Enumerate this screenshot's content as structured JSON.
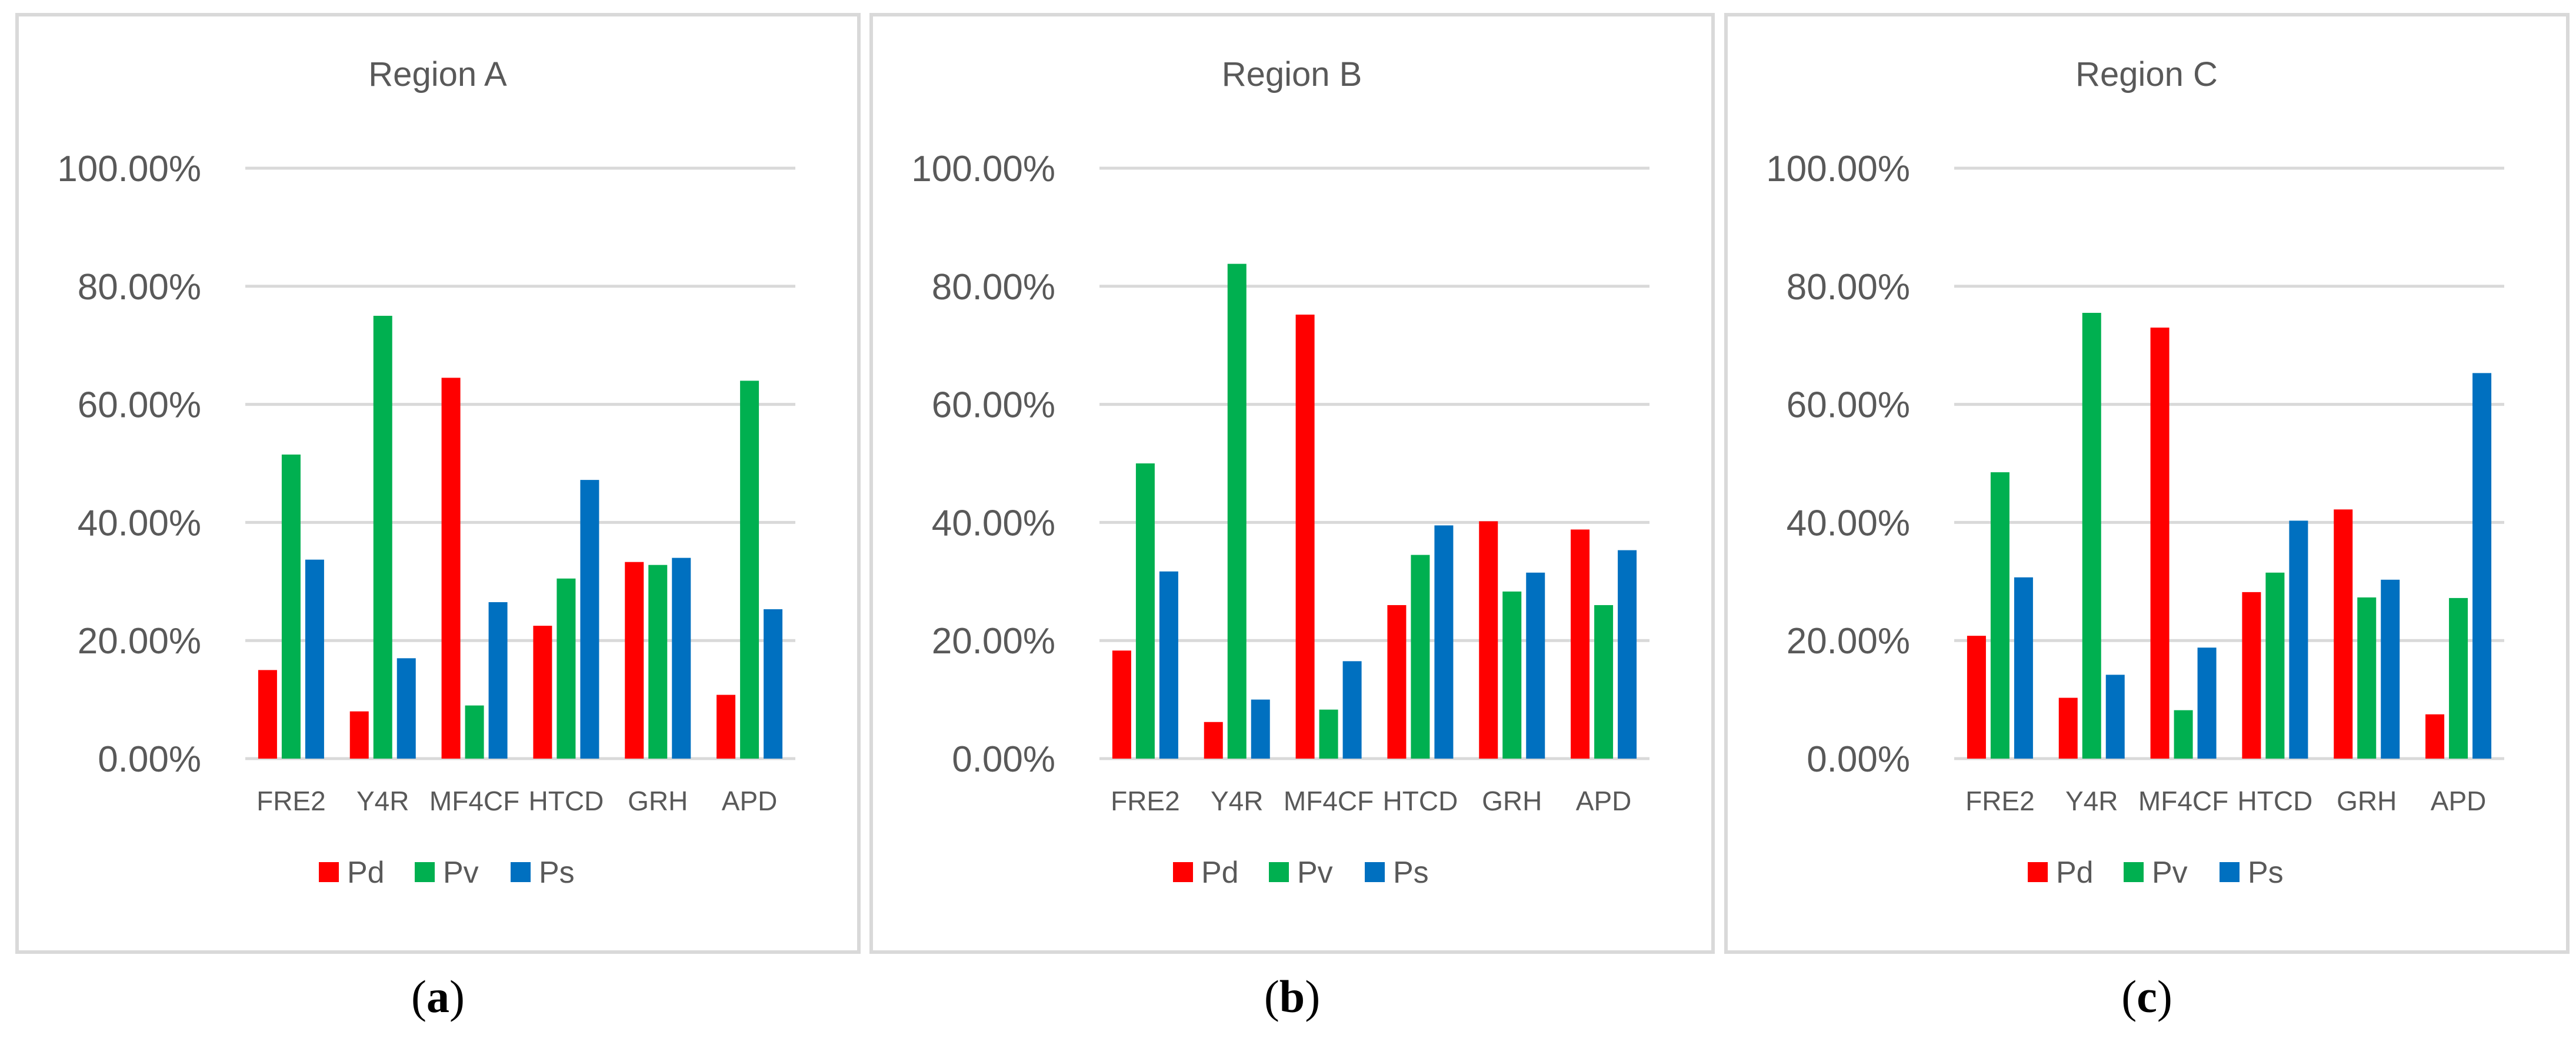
{
  "chart_data": [
    {
      "type": "bar",
      "title": "Region A",
      "caption": "a",
      "categories": [
        "FRE2",
        "Y4R",
        "MF4CF",
        "HTCD",
        "GRH",
        "APD"
      ],
      "ylim": [
        0,
        100
      ],
      "yticks": [
        "0.00%",
        "20.00%",
        "40.00%",
        "60.00%",
        "80.00%",
        "100.00%"
      ],
      "series": [
        {
          "name": "Pd",
          "color": "#ff0000",
          "values": [
            15.0,
            8.0,
            64.5,
            22.5,
            33.3,
            10.8
          ]
        },
        {
          "name": "Pv",
          "color": "#00b050",
          "values": [
            51.5,
            75.0,
            9.0,
            30.5,
            32.8,
            64.0
          ]
        },
        {
          "name": "Ps",
          "color": "#0070c0",
          "values": [
            33.7,
            17.0,
            26.5,
            47.2,
            34.0,
            25.3
          ]
        }
      ],
      "legend": "bottom",
      "grid": true
    },
    {
      "type": "bar",
      "title": "Region B",
      "caption": "b",
      "categories": [
        "FRE2",
        "Y4R",
        "MF4CF",
        "HTCD",
        "GRH",
        "APD"
      ],
      "ylim": [
        0,
        100
      ],
      "yticks": [
        "0.00%",
        "20.00%",
        "40.00%",
        "60.00%",
        "80.00%",
        "100.00%"
      ],
      "series": [
        {
          "name": "Pd",
          "color": "#ff0000",
          "values": [
            18.3,
            6.2,
            75.2,
            26.0,
            40.2,
            38.8
          ]
        },
        {
          "name": "Pv",
          "color": "#00b050",
          "values": [
            50.0,
            83.8,
            8.3,
            34.5,
            28.3,
            26.0
          ]
        },
        {
          "name": "Ps",
          "color": "#0070c0",
          "values": [
            31.7,
            10.0,
            16.5,
            39.5,
            31.5,
            35.3
          ]
        }
      ],
      "legend": "bottom",
      "grid": true
    },
    {
      "type": "bar",
      "title": "Region C",
      "caption": "c",
      "categories": [
        "FRE2",
        "Y4R",
        "MF4CF",
        "HTCD",
        "GRH",
        "APD"
      ],
      "ylim": [
        0,
        100
      ],
      "yticks": [
        "0.00%",
        "20.00%",
        "40.00%",
        "60.00%",
        "80.00%",
        "100.00%"
      ],
      "series": [
        {
          "name": "Pd",
          "color": "#ff0000",
          "values": [
            20.8,
            10.3,
            73.0,
            28.2,
            42.2,
            7.5
          ]
        },
        {
          "name": "Pv",
          "color": "#00b050",
          "values": [
            48.5,
            75.5,
            8.2,
            31.5,
            27.3,
            27.2
          ]
        },
        {
          "name": "Ps",
          "color": "#0070c0",
          "values": [
            30.7,
            14.2,
            18.8,
            40.3,
            30.3,
            65.3
          ]
        }
      ],
      "legend": "bottom",
      "grid": true
    }
  ]
}
